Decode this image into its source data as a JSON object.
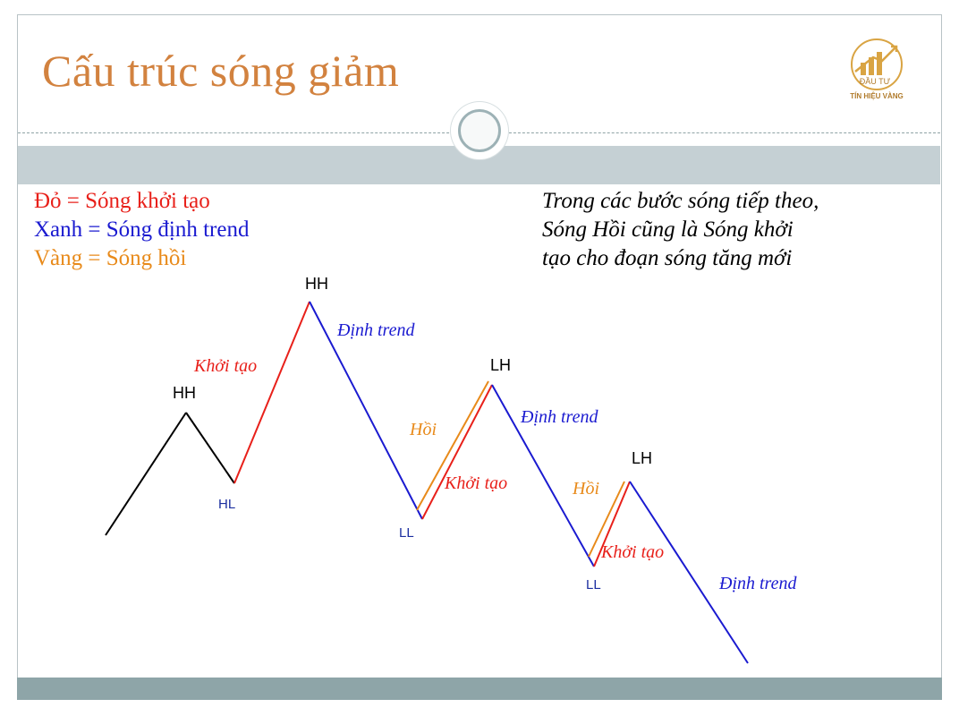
{
  "title": "Cấu trúc sóng giảm",
  "logo": {
    "text": "TÍN HIỆU VÀNG",
    "top_text": "ĐẦU TƯ",
    "icon": "rising-bar-chart-logo"
  },
  "legend": {
    "red": "Đỏ = Sóng khởi tạo",
    "blue": "Xanh = Sóng định trend",
    "yellow": "Vàng = Sóng hồi"
  },
  "note": {
    "line1": "Trong các bước sóng tiếp theo,",
    "line2": "Sóng Hồi cũng là Sóng khởi",
    "line3": "tạo cho đoạn sóng tăng mới"
  },
  "points": {
    "hh1": "HH",
    "hl": "HL",
    "hh2": "HH",
    "ll1": "LL",
    "lh1": "LH",
    "ll2": "LL",
    "lh2": "LH"
  },
  "waves": {
    "khoi_tao_1": "Khởi tạo",
    "dinh_trend_1": "Định trend",
    "hoi_1": "Hồi",
    "khoi_tao_2": "Khởi tạo",
    "dinh_trend_2": "Định trend",
    "hoi_2": "Hồi",
    "khoi_tao_3": "Khởi tạo",
    "dinh_trend_3": "Định trend"
  },
  "colors": {
    "title": "#d2823f",
    "initiation": "#e8201a",
    "trend": "#1a1ad0",
    "retrace": "#e88a1a",
    "neutral": "#000000"
  }
}
